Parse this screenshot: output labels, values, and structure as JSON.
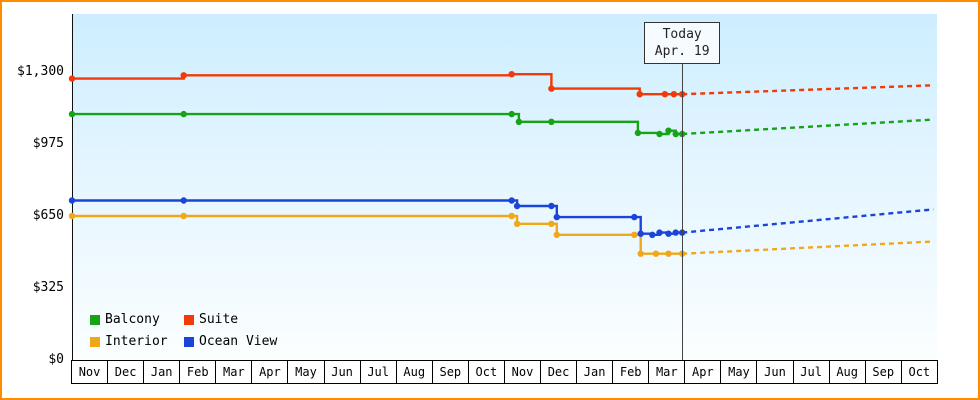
{
  "frame": {
    "border_color": "#ff8c00"
  },
  "chart_data": {
    "type": "line",
    "title": "",
    "xlabel": "",
    "ylabel": "",
    "grid": false,
    "legend_position": "bottom-left",
    "y_axis": {
      "max": 1300,
      "ticks": [
        {
          "label": "$0",
          "value": 0
        },
        {
          "label": "$325",
          "value": 325
        },
        {
          "label": "$650",
          "value": 650
        },
        {
          "label": "$975",
          "value": 975
        },
        {
          "label": "$1,300",
          "value": 1300
        }
      ]
    },
    "x_axis": {
      "months": [
        "Nov",
        "Dec",
        "Jan",
        "Feb",
        "Mar",
        "Apr",
        "May",
        "Jun",
        "Jul",
        "Aug",
        "Sep",
        "Oct",
        "Nov",
        "Dec",
        "Jan",
        "Feb",
        "Mar",
        "Apr",
        "May",
        "Jun",
        "Jul",
        "Aug",
        "Sep",
        "Oct"
      ]
    },
    "today": {
      "line1": "Today",
      "line2": "Apr. 19",
      "month_x": 16.93
    },
    "legend": [
      {
        "label": "Balcony",
        "color": "#16a316"
      },
      {
        "label": "Suite",
        "color": "#f23908"
      },
      {
        "label": "Interior",
        "color": "#f0a818"
      },
      {
        "label": "Ocean View",
        "color": "#1b44d9"
      }
    ],
    "series": [
      {
        "name": "Balcony",
        "color": "#16a316",
        "points": [
          [
            0,
            1110
          ],
          [
            3.1,
            1110
          ],
          [
            12.2,
            1110
          ],
          [
            12.4,
            1075
          ],
          [
            13.3,
            1075
          ],
          [
            15.7,
            1025
          ],
          [
            16.3,
            1020
          ],
          [
            16.55,
            1035
          ],
          [
            16.75,
            1020
          ],
          [
            16.93,
            1020
          ]
        ],
        "projection_end": [
          23.9,
          1085
        ]
      },
      {
        "name": "Suite",
        "color": "#f23908",
        "points": [
          [
            0,
            1270
          ],
          [
            3.1,
            1285
          ],
          [
            12.2,
            1290
          ],
          [
            13.3,
            1225
          ],
          [
            15.75,
            1200
          ],
          [
            16.45,
            1200
          ],
          [
            16.7,
            1200
          ],
          [
            16.93,
            1200
          ]
        ],
        "projection_end": [
          23.9,
          1240
        ]
      },
      {
        "name": "Interior",
        "color": "#f0a818",
        "points": [
          [
            0,
            650
          ],
          [
            3.1,
            650
          ],
          [
            12.2,
            650
          ],
          [
            12.35,
            615
          ],
          [
            13.3,
            615
          ],
          [
            13.45,
            565
          ],
          [
            15.6,
            565
          ],
          [
            15.78,
            480
          ],
          [
            16.2,
            480
          ],
          [
            16.55,
            480
          ],
          [
            16.93,
            480
          ]
        ],
        "projection_end": [
          23.9,
          535
        ]
      },
      {
        "name": "Ocean View",
        "color": "#1b44d9",
        "points": [
          [
            0,
            720
          ],
          [
            3.1,
            720
          ],
          [
            12.2,
            720
          ],
          [
            12.35,
            695
          ],
          [
            13.3,
            695
          ],
          [
            13.45,
            645
          ],
          [
            15.6,
            645
          ],
          [
            15.78,
            570
          ],
          [
            16.1,
            565
          ],
          [
            16.3,
            575
          ],
          [
            16.55,
            570
          ],
          [
            16.75,
            575
          ],
          [
            16.93,
            575
          ]
        ],
        "projection_end": [
          23.9,
          680
        ]
      }
    ]
  }
}
